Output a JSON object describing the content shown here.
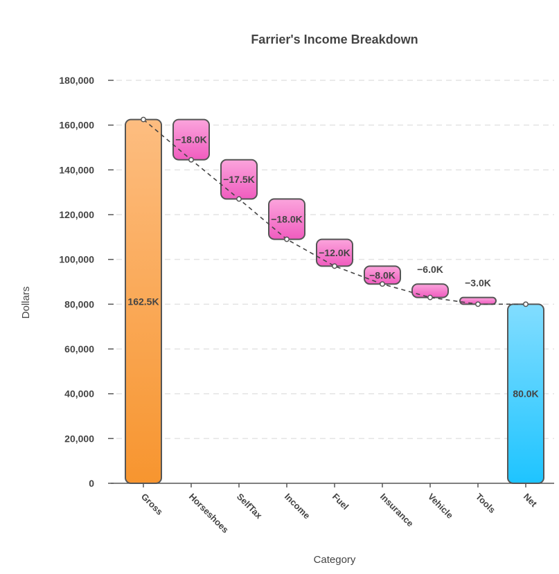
{
  "chart_data": {
    "type": "waterfall",
    "title": "Farrier's Income Breakdown",
    "xlabel": "Category",
    "ylabel": "Dollars",
    "ylim": [
      0,
      180000
    ],
    "yticks": [
      0,
      20000,
      40000,
      60000,
      80000,
      100000,
      120000,
      140000,
      160000,
      180000
    ],
    "ytick_labels": [
      "0",
      "20,000",
      "40,000",
      "60,000",
      "80,000",
      "100,000",
      "120,000",
      "140,000",
      "160,000",
      "180,000"
    ],
    "grid": true,
    "categories": [
      "Gross",
      "Horseshoes",
      "SelfTax",
      "Income",
      "Fuel",
      "Insurance",
      "Vehicle",
      "Tools",
      "Net"
    ],
    "values": [
      162500,
      -18000,
      -17500,
      -18000,
      -12000,
      -8000,
      -6000,
      -3000,
      80000
    ],
    "kinds": [
      "total",
      "delta",
      "delta",
      "delta",
      "delta",
      "delta",
      "delta",
      "delta",
      "total"
    ],
    "data_labels": [
      "162.5K",
      "−18.0K",
      "−17.5K",
      "−18.0K",
      "−12.0K",
      "−8.0K",
      "−6.0K",
      "−3.0K",
      "80.0K"
    ],
    "colors": {
      "start": [
        "#fdbd80",
        "#f7952f"
      ],
      "decrease": [
        "#fba4dc",
        "#f05cbf"
      ],
      "end": [
        "#82ddff",
        "#1ec4ff"
      ],
      "stroke": "#555555"
    }
  }
}
